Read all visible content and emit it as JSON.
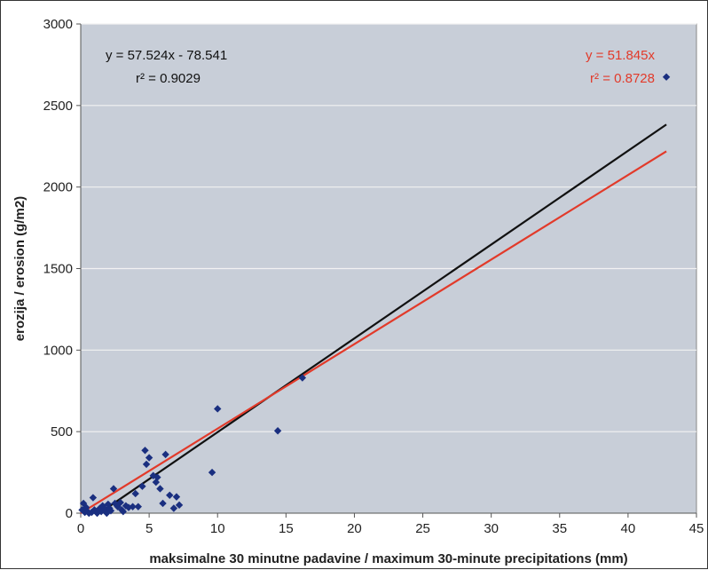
{
  "chart_data": {
    "type": "scatter",
    "xlabel": "maksimalne 30 minutne padavine / maximum 30-minute precipitations (mm)",
    "ylabel": "erozija / erosion (g/m2)",
    "xlim": [
      0,
      45
    ],
    "ylim": [
      0,
      3000
    ],
    "xticks": [
      "0",
      "5",
      "10",
      "15",
      "20",
      "25",
      "30",
      "35",
      "40",
      "45"
    ],
    "yticks": [
      "0",
      "500",
      "1000",
      "1500",
      "2000",
      "2500",
      "3000"
    ],
    "grid": "horizontal",
    "background": "#c8ced8",
    "points": [
      [
        0.1,
        20
      ],
      [
        0.2,
        60
      ],
      [
        0.3,
        5
      ],
      [
        0.4,
        35
      ],
      [
        0.5,
        10
      ],
      [
        0.6,
        0
      ],
      [
        0.8,
        5
      ],
      [
        0.9,
        95
      ],
      [
        1.0,
        20
      ],
      [
        1.1,
        10
      ],
      [
        1.2,
        0
      ],
      [
        1.4,
        30
      ],
      [
        1.5,
        10
      ],
      [
        1.6,
        45
      ],
      [
        1.8,
        25
      ],
      [
        1.9,
        0
      ],
      [
        2.0,
        55
      ],
      [
        2.1,
        30
      ],
      [
        2.2,
        15
      ],
      [
        2.4,
        150
      ],
      [
        2.5,
        60
      ],
      [
        2.7,
        40
      ],
      [
        2.9,
        65
      ],
      [
        3.0,
        20
      ],
      [
        3.1,
        10
      ],
      [
        3.3,
        45
      ],
      [
        3.5,
        35
      ],
      [
        3.8,
        40
      ],
      [
        4.0,
        120
      ],
      [
        4.2,
        40
      ],
      [
        4.5,
        165
      ],
      [
        4.7,
        385
      ],
      [
        4.8,
        300
      ],
      [
        5.0,
        340
      ],
      [
        5.3,
        230
      ],
      [
        5.5,
        190
      ],
      [
        5.6,
        220
      ],
      [
        5.8,
        150
      ],
      [
        6.0,
        60
      ],
      [
        6.2,
        360
      ],
      [
        6.5,
        110
      ],
      [
        6.8,
        30
      ],
      [
        7.0,
        100
      ],
      [
        7.2,
        50
      ],
      [
        9.6,
        250
      ],
      [
        10.0,
        640
      ],
      [
        14.4,
        505
      ],
      [
        16.2,
        830
      ],
      [
        42.8,
        2675
      ]
    ],
    "point_color": "#1a2f80",
    "trendlines": [
      {
        "equation": "y = 57.524x - 78.541",
        "r2": "r² = 0.9029",
        "slope": 57.524,
        "intercept": -78.541,
        "x_range": [
          1.5,
          42.8
        ],
        "color": "#111111"
      },
      {
        "equation": "y = 51.845x",
        "r2": "r² = 0.8728",
        "slope": 51.845,
        "intercept": 0,
        "x_range": [
          0,
          42.8
        ],
        "color": "#e23a2a"
      }
    ]
  }
}
